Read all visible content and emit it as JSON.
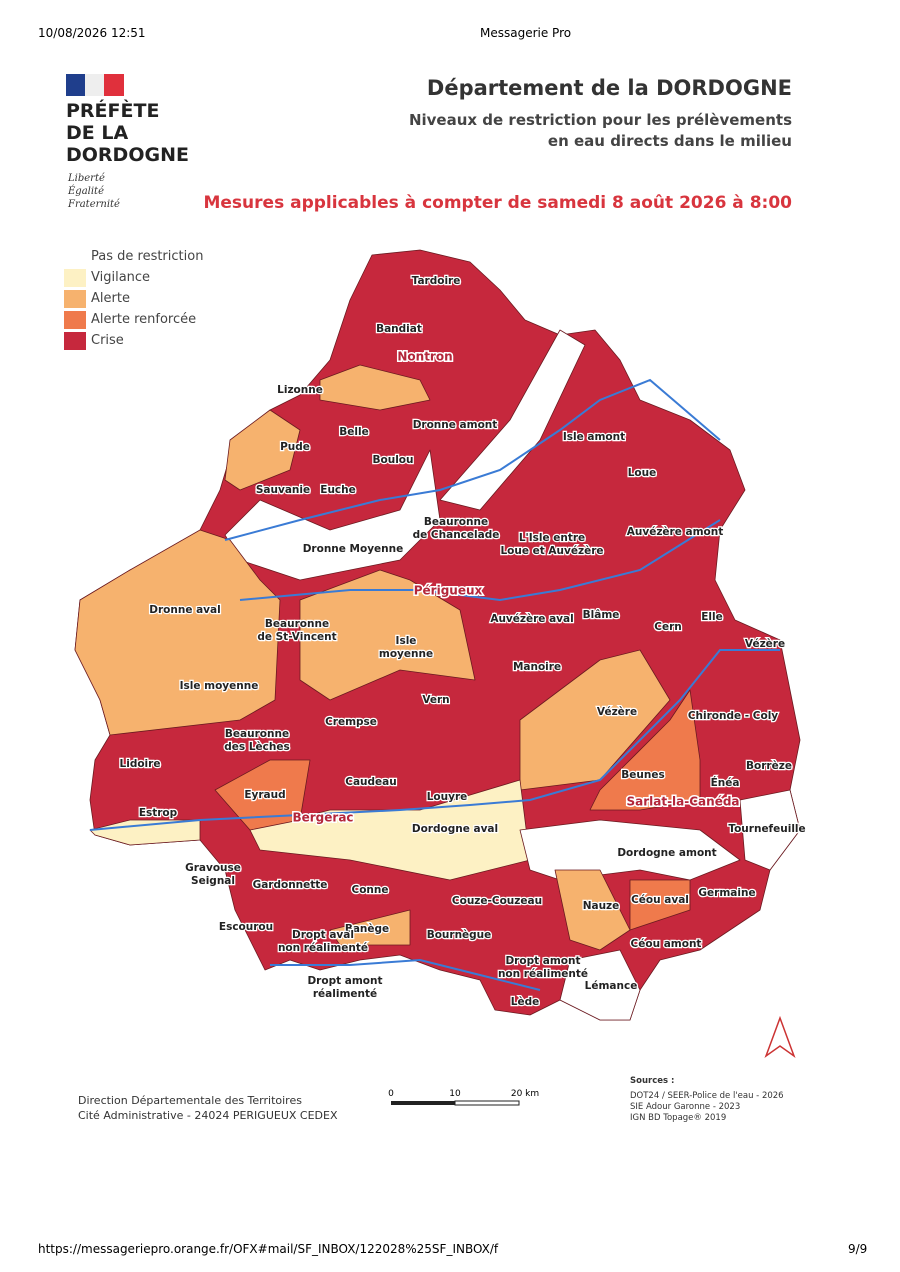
{
  "browser": {
    "timestamp": "10/08/2026 12:51",
    "page_title": "Messagerie Pro",
    "url": "https://messageriepro.orange.fr/OFX#mail/SF_INBOX/122028%25SF_INBOX/f",
    "page_number": "9/9"
  },
  "logo": {
    "lines": [
      "PRÉFÈTE",
      "DE LA",
      "DORDOGNE"
    ],
    "motto": [
      "Liberté",
      "Égalité",
      "Fraternité"
    ]
  },
  "header": {
    "title": "Département de la DORDOGNE",
    "subtitle": [
      "Niveaux de restriction pour les prélèvements",
      "en eau directs dans le milieu"
    ],
    "notice": "Mesures applicables à compter de samedi 8 août 2026 à 8:00"
  },
  "legend": [
    {
      "label": "Pas de restriction",
      "color": "#ffffff"
    },
    {
      "label": "Vigilance",
      "color": "#fdf1c4"
    },
    {
      "label": "Alerte",
      "color": "#f6b26e"
    },
    {
      "label": "Alerte renforcée",
      "color": "#ef7a4c"
    },
    {
      "label": "Crise",
      "color": "#c6283d"
    }
  ],
  "cities": [
    "Nontron",
    "Périgueux",
    "Bergerac",
    "Sarlat-la-Canéda"
  ],
  "zones": [
    [
      "Tardoire"
    ],
    [
      "Bandiat"
    ],
    [
      "Lizonne"
    ],
    [
      "Belle"
    ],
    [
      "Dronne amont"
    ],
    [
      "Isle amont"
    ],
    [
      "Pude"
    ],
    [
      "Boulou"
    ],
    [
      "Loue"
    ],
    [
      "Sauvanie"
    ],
    [
      "Euche"
    ],
    [
      "Beauronne",
      "de Chancelade"
    ],
    [
      "L'Isle entre",
      "Loue et Auvézère"
    ],
    [
      "Auvézère amont"
    ],
    [
      "Dronne Moyenne"
    ],
    [
      "Dronne aval"
    ],
    [
      "Beauronne",
      "de St-Vincent"
    ],
    [
      "Auvézère aval"
    ],
    [
      "Blâme"
    ],
    [
      "Elle"
    ],
    [
      "Cern"
    ],
    [
      "Vézère"
    ],
    [
      "Isle",
      "moyenne"
    ],
    [
      "Manoire"
    ],
    [
      "Isle moyenne"
    ],
    [
      "Vern"
    ],
    [
      "Vézère"
    ],
    [
      "Chironde - Coly"
    ],
    [
      "Crempse"
    ],
    [
      "Beauronne",
      "des Lèches"
    ],
    [
      "Lidoire"
    ],
    [
      "Borrèze"
    ],
    [
      "Beunes"
    ],
    [
      "Caudeau"
    ],
    [
      "Énéa"
    ],
    [
      "Eyraud"
    ],
    [
      "Louyre"
    ],
    [
      "Estrop"
    ],
    [
      "Tournefeuille"
    ],
    [
      "Dordogne aval"
    ],
    [
      "Dordogne amont"
    ],
    [
      "Gravouse",
      "Seignal"
    ],
    [
      "Gardonnette"
    ],
    [
      "Conne"
    ],
    [
      "Germaine"
    ],
    [
      "Couze-Couzeau"
    ],
    [
      "Nauze"
    ],
    [
      "Céou aval"
    ],
    [
      "Escourou"
    ],
    [
      "Banège"
    ],
    [
      "Dropt aval",
      "non réalimenté"
    ],
    [
      "Bournègue"
    ],
    [
      "Céou amont"
    ],
    [
      "Dropt amont",
      "non réalimenté"
    ],
    [
      "Dropt amont",
      "réalimenté"
    ],
    [
      "Lémance"
    ],
    [
      "Lède"
    ]
  ],
  "footer": {
    "address": [
      "Direction Départementale des Territoires",
      "Cité Administrative - 24024 PERIGUEUX CEDEX"
    ],
    "scale": [
      "0",
      "10",
      "20 km"
    ],
    "sources_title": "Sources :",
    "sources": [
      "DOT24 / SEER-Police de l'eau - 2026",
      "SIE Adour Garonne - 2023",
      "IGN BD Topage® 2019"
    ]
  }
}
